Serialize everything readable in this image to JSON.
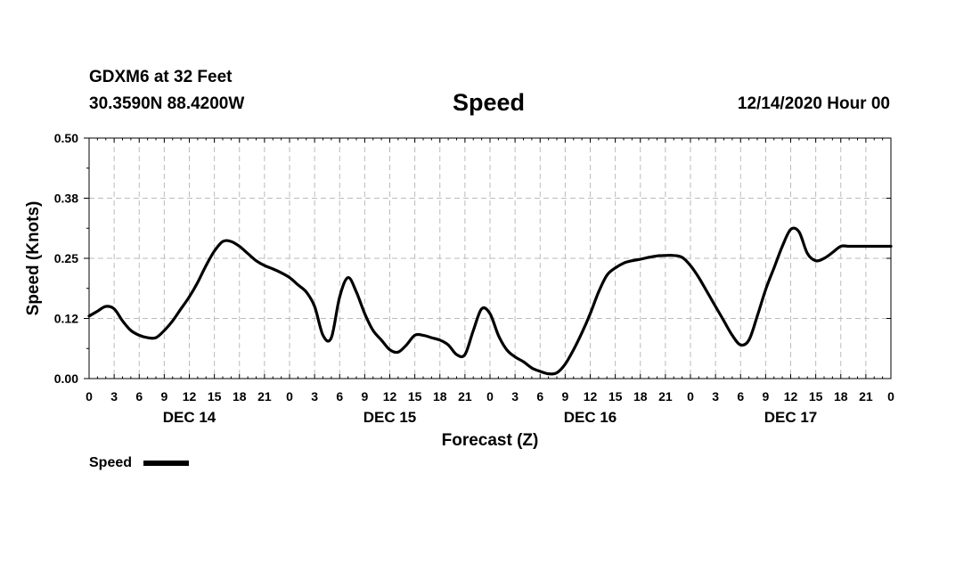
{
  "header": {
    "station": "GDXM6 at 32 Feet",
    "coords": "30.3590N 88.4200W",
    "title": "Speed",
    "run_time": "12/14/2020 Hour 00"
  },
  "chart_data": {
    "type": "line",
    "title": "Speed",
    "xlabel": "Forecast (Z)",
    "ylabel": "Speed (Knots)",
    "ylim": [
      0,
      0.5
    ],
    "yticks": [
      "0.00",
      "0.12",
      "0.25",
      "0.38",
      "0.50"
    ],
    "xlim": [
      0,
      96
    ],
    "x_tick_labels": [
      "0",
      "3",
      "6",
      "9",
      "12",
      "15",
      "18",
      "21",
      "0",
      "3",
      "6",
      "9",
      "12",
      "15",
      "18",
      "21",
      "0",
      "3",
      "6",
      "9",
      "12",
      "15",
      "18",
      "21",
      "0",
      "3",
      "6",
      "9",
      "12",
      "15",
      "18",
      "21",
      "0"
    ],
    "day_labels": [
      {
        "label": "DEC 14",
        "hour": 12
      },
      {
        "label": "DEC 15",
        "hour": 36
      },
      {
        "label": "DEC 16",
        "hour": 60
      },
      {
        "label": "DEC 17",
        "hour": 84
      }
    ],
    "grid": true,
    "legend_position": "bottom-left",
    "series": [
      {
        "name": "Speed",
        "color": "#000000",
        "x": [
          0,
          1,
          2,
          3,
          4,
          5,
          6,
          7,
          8,
          9,
          10,
          11,
          12,
          13,
          14,
          15,
          16,
          17,
          18,
          19,
          20,
          21,
          22,
          23,
          24,
          25,
          26,
          27,
          28,
          29,
          30,
          31,
          32,
          33,
          34,
          35,
          36,
          37,
          38,
          39,
          40,
          41,
          42,
          43,
          44,
          45,
          46,
          47,
          48,
          49,
          50,
          51,
          52,
          53,
          54,
          55,
          56,
          57,
          58,
          59,
          60,
          61,
          62,
          63,
          64,
          65,
          66,
          67,
          68,
          69,
          70,
          71,
          72,
          73,
          74,
          75,
          76,
          77,
          78,
          79,
          80,
          81,
          82,
          83,
          84,
          85,
          86,
          87,
          88,
          89,
          90,
          91,
          92,
          93,
          94,
          95,
          96
        ],
        "values": [
          0.13,
          0.14,
          0.15,
          0.145,
          0.12,
          0.1,
          0.09,
          0.085,
          0.085,
          0.1,
          0.12,
          0.145,
          0.17,
          0.2,
          0.235,
          0.265,
          0.285,
          0.285,
          0.275,
          0.26,
          0.245,
          0.235,
          0.228,
          0.22,
          0.21,
          0.195,
          0.18,
          0.15,
          0.09,
          0.085,
          0.17,
          0.21,
          0.18,
          0.135,
          0.1,
          0.08,
          0.06,
          0.055,
          0.07,
          0.09,
          0.09,
          0.085,
          0.08,
          0.07,
          0.05,
          0.05,
          0.1,
          0.145,
          0.135,
          0.09,
          0.06,
          0.045,
          0.035,
          0.022,
          0.015,
          0.01,
          0.012,
          0.03,
          0.06,
          0.095,
          0.135,
          0.18,
          0.215,
          0.23,
          0.24,
          0.245,
          0.248,
          0.252,
          0.255,
          0.256,
          0.256,
          0.252,
          0.235,
          0.21,
          0.18,
          0.15,
          0.12,
          0.09,
          0.07,
          0.08,
          0.13,
          0.185,
          0.23,
          0.275,
          0.31,
          0.305,
          0.26,
          0.245,
          0.25,
          0.262,
          0.275,
          0.275,
          0.275,
          0.275,
          0.275,
          0.275,
          0.275
        ]
      }
    ]
  },
  "legend": {
    "label": "Speed",
    "color": "#000000"
  }
}
